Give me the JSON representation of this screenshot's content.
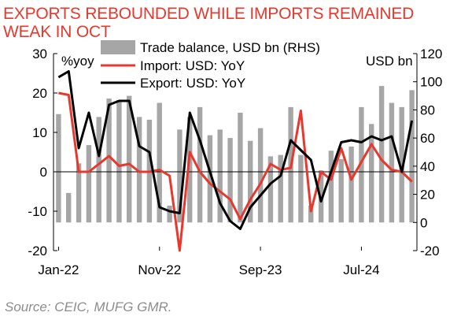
{
  "chart_data": {
    "type": "bar+line",
    "title_lines": [
      "EXPORTS REBOUNDED WHILE IMPORTS REMAINED",
      "WEAK IN OCT"
    ],
    "source": "Source: CEIC, MUFG GMR.",
    "left_unit": "%yoy",
    "right_unit": "USD bn",
    "left_ticks": [
      30,
      20,
      10,
      0,
      -10,
      -20
    ],
    "right_ticks": [
      120,
      100,
      80,
      60,
      40,
      20,
      0,
      -20
    ],
    "left_range": [
      -20,
      30
    ],
    "right_range": [
      -20,
      120
    ],
    "x_tick_labels": [
      "Jan-22",
      "Nov-22",
      "Sep-23",
      "Jul-24"
    ],
    "x_tick_indices": [
      0,
      10,
      20,
      30
    ],
    "series": [
      {
        "name": "Trade balance, USD bn (RHS)",
        "axis": "right",
        "kind": "bar",
        "color": "#a6a6a6",
        "values": [
          77,
          21,
          42,
          55,
          75,
          88,
          87,
          90,
          75,
          73,
          85,
          12,
          66,
          75,
          82,
          62,
          66,
          60,
          78,
          58,
          67,
          47,
          48,
          82,
          48,
          12,
          37,
          51,
          45,
          54,
          82,
          70,
          97,
          85,
          82,
          94
        ]
      },
      {
        "name": "Import: USD: YoY",
        "axis": "left",
        "kind": "line",
        "color": "#e8382d",
        "values": [
          20,
          19.5,
          0,
          0,
          2,
          4,
          1.5,
          2,
          0,
          0,
          0.5,
          -1,
          -20,
          5,
          0,
          -3,
          -5,
          -7,
          -12,
          -7,
          -3,
          2,
          0.5,
          1,
          15.5,
          -10,
          0,
          -2,
          6,
          -2,
          2.5,
          7,
          3,
          0.5,
          0,
          -2.5
        ]
      },
      {
        "name": "Export: USD: YoY",
        "axis": "left",
        "kind": "line",
        "color": "#000000",
        "values": [
          24,
          25.5,
          6,
          15,
          4,
          17,
          18,
          18,
          6.5,
          5,
          -9,
          -10,
          -10.5,
          15,
          8,
          0,
          -8,
          -12.5,
          -14.5,
          -9,
          -6,
          -3,
          -1,
          8,
          5.5,
          3,
          -7.5,
          0,
          7.5,
          8,
          7.5,
          9,
          8,
          9,
          0,
          13
        ]
      }
    ],
    "legend": {
      "placement": "top-center",
      "items": [
        "Trade balance, USD bn (RHS)",
        "Import: USD: YoY",
        "Export: USD: YoY"
      ]
    },
    "colors": {
      "title": "#e8382d",
      "import": "#e8382d",
      "export": "#000000",
      "balance": "#a6a6a6"
    }
  }
}
